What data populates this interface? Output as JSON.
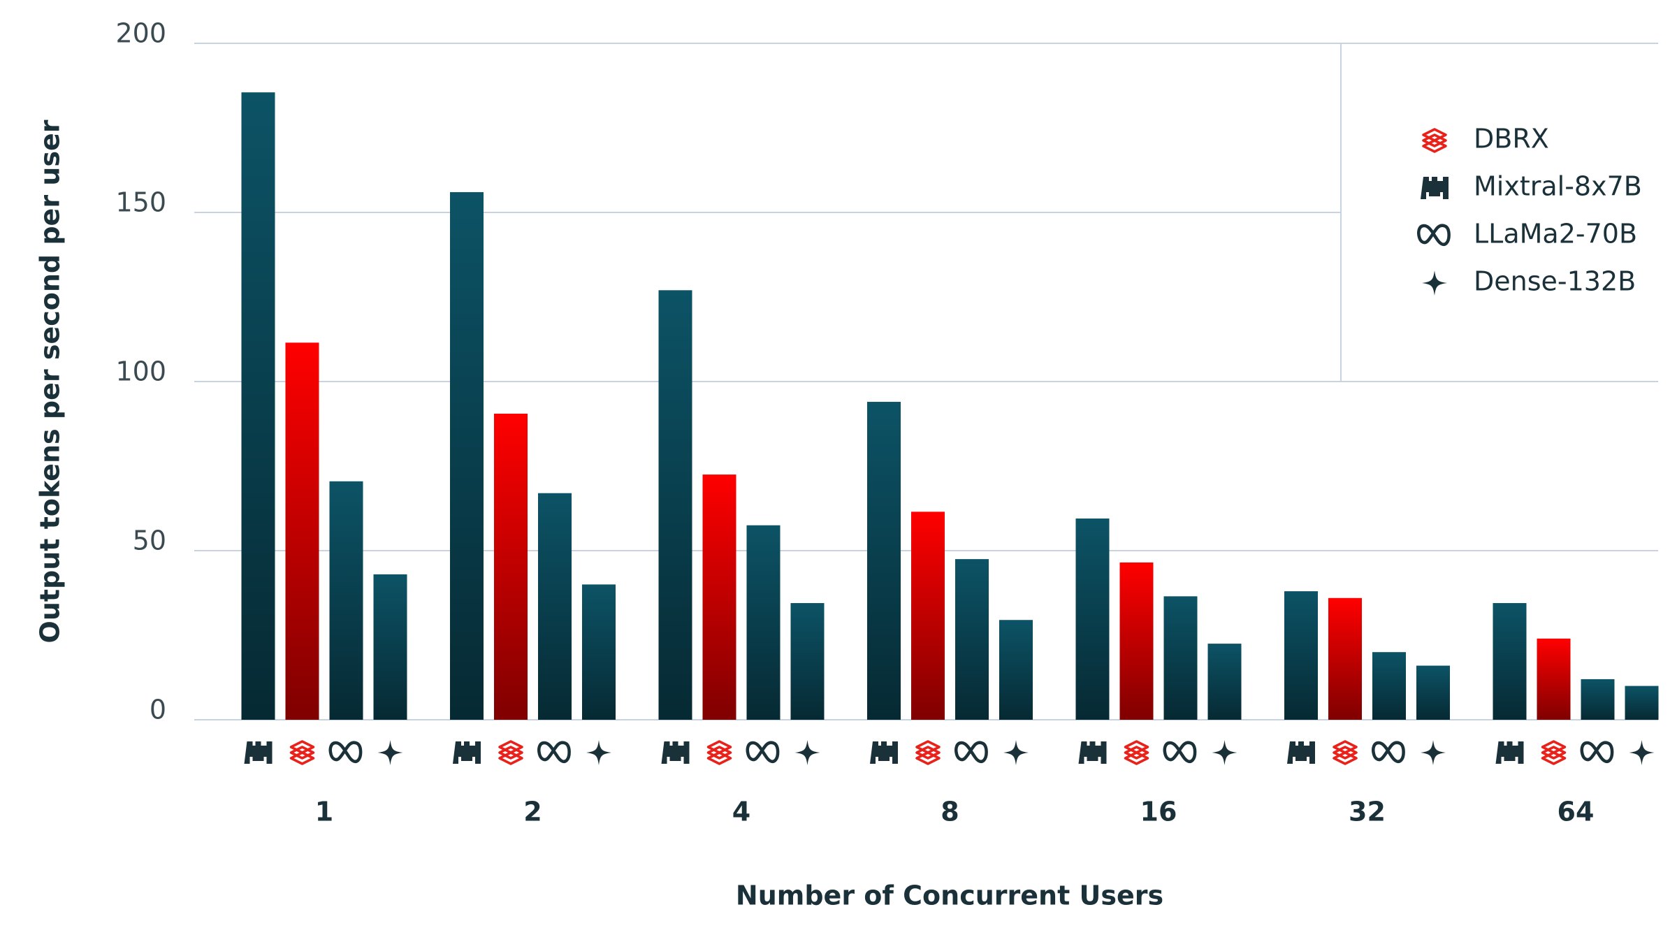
{
  "chart_data": {
    "type": "bar",
    "x_label": "Number of Concurrent Users",
    "y_label": "Output tokens per second per user",
    "categories": [
      "1",
      "2",
      "4",
      "8",
      "16",
      "32",
      "64"
    ],
    "series": [
      {
        "name": "DBRX",
        "color": "#ff0000",
        "values": [
          111.5,
          90.5,
          72.5,
          61.5,
          46.5,
          36,
          24
        ]
      },
      {
        "name": "Mixtral-8x7B",
        "color": "#0c5366",
        "values": [
          185.5,
          156,
          127,
          94,
          59.5,
          38,
          34.5
        ]
      },
      {
        "name": "LLaMa2-70B",
        "color": "#0c5366",
        "values": [
          70.5,
          67,
          57.5,
          47.5,
          36.5,
          20,
          12
        ]
      },
      {
        "name": "Dense-132B",
        "color": "#0c5366",
        "values": [
          43,
          40,
          34.5,
          29.5,
          22.5,
          16,
          10
        ]
      }
    ],
    "ylim": [
      0,
      200
    ],
    "yticks": [
      0,
      50,
      100,
      150,
      200
    ],
    "grid": true,
    "legend": "upper right"
  }
}
